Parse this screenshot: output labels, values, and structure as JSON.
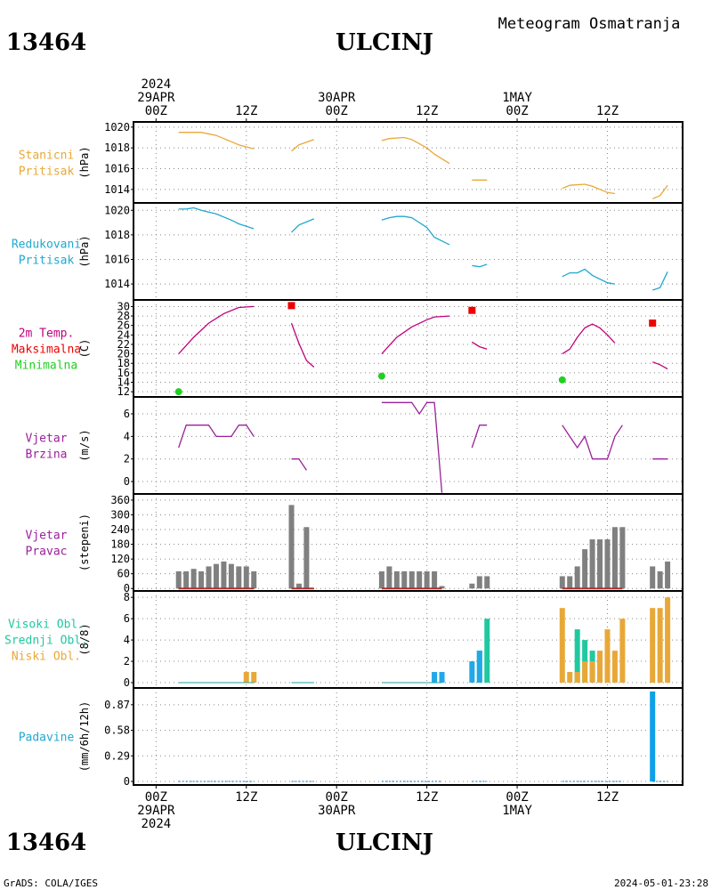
{
  "header": {
    "station_id": "13464",
    "station_name": "ULCINJ",
    "product": "Meteogram Osmatranja"
  },
  "footer": {
    "station_id": "13464",
    "station_name": "ULCINJ",
    "credit": "GrADS: COLA/IGES",
    "timestamp": "2024-05-01-23:28"
  },
  "time_axis": {
    "top_labels": [
      {
        "hour": 0,
        "lines": [
          "2024",
          "29APR",
          "00Z"
        ]
      },
      {
        "hour": 12,
        "lines": [
          "12Z"
        ]
      },
      {
        "hour": 24,
        "lines": [
          "30APR",
          "00Z"
        ]
      },
      {
        "hour": 36,
        "lines": [
          "12Z"
        ]
      },
      {
        "hour": 48,
        "lines": [
          "1MAY",
          "00Z"
        ]
      },
      {
        "hour": 60,
        "lines": [
          "12Z"
        ]
      }
    ],
    "bottom_labels": [
      {
        "hour": 0,
        "lines": [
          "00Z",
          "29APR",
          "2024"
        ]
      },
      {
        "hour": 12,
        "lines": [
          "12Z"
        ]
      },
      {
        "hour": 24,
        "lines": [
          "00Z",
          "30APR"
        ]
      },
      {
        "hour": 36,
        "lines": [
          "12Z"
        ]
      },
      {
        "hour": 48,
        "lines": [
          "00Z",
          "1MAY"
        ]
      },
      {
        "hour": 60,
        "lines": [
          "12Z"
        ]
      }
    ],
    "range_hours": [
      -3,
      70
    ]
  },
  "colors": {
    "orange": "#e8a838",
    "cyan": "#20a8d0",
    "magenta": "#c0007a",
    "red": "#ee0000",
    "green": "#20d020",
    "purple": "#9b209b",
    "gray": "#808080",
    "teal": "#20c8a0",
    "blue": "#10a0e8",
    "darkred": "#b03030"
  },
  "chart_data": [
    {
      "type": "line",
      "panel": "station_pressure",
      "labels": [
        "Stanicni",
        "Pritisak"
      ],
      "label_color": "#e8a838",
      "ylabel": "(hPa)",
      "yticks": [
        1014,
        1016,
        1018,
        1020
      ],
      "ylim": [
        1012.7,
        1020.5
      ],
      "series": [
        {
          "color": "#e8a838",
          "segments": [
            [
              [
                3,
                1019.5
              ],
              [
                6,
                1019.5
              ],
              [
                8,
                1019.2
              ],
              [
                10,
                1018.6
              ],
              [
                11,
                1018.3
              ],
              [
                13,
                1017.9
              ]
            ],
            [
              [
                18,
                1017.7
              ],
              [
                19,
                1018.3
              ],
              [
                21,
                1018.8
              ]
            ],
            [
              [
                30,
                1018.7
              ],
              [
                31,
                1018.9
              ],
              [
                33,
                1019.0
              ],
              [
                34,
                1018.8
              ],
              [
                36,
                1018.0
              ],
              [
                37,
                1017.4
              ],
              [
                39,
                1016.5
              ]
            ],
            [
              [
                42,
                1014.9
              ],
              [
                44,
                1014.9
              ]
            ],
            [
              [
                54,
                1014.1
              ],
              [
                55,
                1014.4
              ],
              [
                57,
                1014.5
              ],
              [
                58,
                1014.3
              ],
              [
                60,
                1013.7
              ],
              [
                61,
                1013.6
              ]
            ],
            [
              [
                66,
                1013.1
              ],
              [
                67,
                1013.4
              ],
              [
                68,
                1014.4
              ]
            ]
          ]
        }
      ]
    },
    {
      "type": "line",
      "panel": "reduced_pressure",
      "labels": [
        "Redukovani",
        "Pritisak"
      ],
      "label_color": "#20a8d0",
      "ylabel": "(hPa)",
      "yticks": [
        1014,
        1016,
        1018,
        1020
      ],
      "ylim": [
        1012.7,
        1020.6
      ],
      "series": [
        {
          "color": "#20a8d0",
          "segments": [
            [
              [
                3,
                1020.1
              ],
              [
                4,
                1020.1
              ],
              [
                5,
                1020.2
              ],
              [
                6,
                1020.0
              ],
              [
                8,
                1019.7
              ],
              [
                10,
                1019.2
              ],
              [
                11,
                1018.9
              ],
              [
                13,
                1018.5
              ]
            ],
            [
              [
                18,
                1018.2
              ],
              [
                19,
                1018.8
              ],
              [
                21,
                1019.3
              ]
            ],
            [
              [
                30,
                1019.2
              ],
              [
                31,
                1019.4
              ],
              [
                32,
                1019.5
              ],
              [
                33,
                1019.5
              ],
              [
                34,
                1019.4
              ],
              [
                36,
                1018.6
              ],
              [
                37,
                1017.8
              ],
              [
                39,
                1017.2
              ]
            ],
            [
              [
                42,
                1015.5
              ],
              [
                43,
                1015.4
              ],
              [
                44,
                1015.6
              ]
            ],
            [
              [
                54,
                1014.6
              ],
              [
                55,
                1014.9
              ],
              [
                56,
                1014.9
              ],
              [
                57,
                1015.2
              ],
              [
                58,
                1014.7
              ],
              [
                60,
                1014.1
              ],
              [
                61,
                1014.0
              ]
            ],
            [
              [
                66,
                1013.5
              ],
              [
                67,
                1013.7
              ],
              [
                68,
                1015.0
              ]
            ]
          ]
        }
      ]
    },
    {
      "type": "line",
      "panel": "temperature",
      "labels": [
        "2m Temp.",
        "Maksimalna",
        "Minimalna"
      ],
      "label_colors": [
        "#c0007a",
        "#ee0000",
        "#20d020"
      ],
      "ylabel": "(C)",
      "yticks": [
        12,
        14,
        16,
        18,
        20,
        22,
        24,
        26,
        28,
        30
      ],
      "ylim": [
        10.9,
        31.4
      ],
      "series": [
        {
          "color": "#c0007a",
          "segments": [
            [
              [
                3,
                20
              ],
              [
                5,
                23.5
              ],
              [
                7,
                26.5
              ],
              [
                9,
                28.5
              ],
              [
                11,
                29.8
              ],
              [
                13,
                30
              ]
            ],
            [
              [
                18,
                26.5
              ],
              [
                19,
                22.2
              ],
              [
                20,
                18.6
              ],
              [
                21,
                17.2
              ]
            ],
            [
              [
                30,
                20
              ],
              [
                32,
                23.5
              ],
              [
                34,
                25.7
              ],
              [
                36,
                27.2
              ],
              [
                37,
                27.8
              ],
              [
                39,
                28
              ]
            ],
            [
              [
                42,
                22.5
              ],
              [
                43,
                21.5
              ],
              [
                44,
                21
              ]
            ],
            [
              [
                54,
                20
              ],
              [
                55,
                21
              ],
              [
                56,
                23.5
              ],
              [
                57,
                25.5
              ],
              [
                58,
                26.3
              ],
              [
                59,
                25.5
              ],
              [
                60,
                24
              ],
              [
                61,
                22.3
              ]
            ],
            [
              [
                66,
                18.3
              ],
              [
                67,
                17.7
              ],
              [
                68,
                16.8
              ]
            ]
          ]
        }
      ],
      "maxima": [
        [
          18,
          30.2
        ],
        [
          42,
          29.2
        ],
        [
          66,
          26.5
        ]
      ],
      "minima": [
        [
          3,
          12
        ],
        [
          30,
          15.3
        ],
        [
          54,
          14.5
        ]
      ]
    },
    {
      "type": "line",
      "panel": "wind_speed",
      "labels": [
        "Vjetar",
        "Brzina"
      ],
      "label_color": "#9b209b",
      "ylabel": "(m/s)",
      "yticks": [
        0,
        2,
        4,
        6
      ],
      "ylim": [
        -1.1,
        7.5
      ],
      "series": [
        {
          "color": "#9b209b",
          "segments": [
            [
              [
                3,
                3
              ],
              [
                4,
                5
              ],
              [
                6,
                5
              ],
              [
                7,
                5
              ],
              [
                8,
                4
              ],
              [
                9,
                4
              ],
              [
                10,
                4
              ],
              [
                11,
                5
              ],
              [
                12,
                5
              ],
              [
                13,
                4
              ]
            ],
            [
              [
                18,
                2
              ],
              [
                19,
                2
              ],
              [
                20,
                1
              ]
            ],
            [
              [
                30,
                7
              ],
              [
                31,
                7
              ],
              [
                32,
                7
              ],
              [
                33,
                7
              ],
              [
                34,
                7
              ],
              [
                35,
                6
              ],
              [
                36,
                7
              ],
              [
                37,
                7
              ],
              [
                38,
                -1
              ]
            ],
            [
              [
                42,
                3
              ],
              [
                43,
                5
              ],
              [
                44,
                5
              ]
            ],
            [
              [
                54,
                5
              ],
              [
                55,
                4
              ],
              [
                56,
                3
              ],
              [
                57,
                4
              ],
              [
                58,
                2
              ],
              [
                59,
                2
              ],
              [
                60,
                2
              ],
              [
                61,
                4
              ],
              [
                62,
                5
              ]
            ],
            [
              [
                66,
                2
              ],
              [
                67,
                2
              ],
              [
                68,
                2
              ]
            ]
          ]
        }
      ]
    },
    {
      "type": "bar",
      "panel": "wind_direction",
      "labels": [
        "Vjetar",
        "Pravac"
      ],
      "label_color": "#9b209b",
      "ylabel": "(stepeni)",
      "yticks": [
        0,
        60,
        120,
        180,
        240,
        300,
        360
      ],
      "ylim": [
        -10,
        385
      ],
      "x": [
        3,
        4,
        5,
        6,
        7,
        8,
        9,
        10,
        11,
        12,
        13,
        18,
        19,
        20,
        30,
        31,
        32,
        33,
        34,
        35,
        36,
        37,
        38,
        42,
        43,
        44,
        54,
        55,
        56,
        57,
        58,
        59,
        60,
        61,
        62,
        66,
        67,
        68
      ],
      "values": [
        70,
        70,
        80,
        70,
        90,
        100,
        110,
        100,
        90,
        90,
        70,
        340,
        20,
        250,
        70,
        90,
        70,
        70,
        70,
        70,
        70,
        70,
        10,
        20,
        50,
        50,
        50,
        50,
        90,
        160,
        200,
        200,
        200,
        250,
        250,
        90,
        70,
        110
      ],
      "bar_color": "#808080",
      "base_color": "#b03030"
    },
    {
      "type": "bar",
      "panel": "clouds",
      "labels": [
        "Visoki Obl.",
        "Srednji Obl.",
        "Niski Obl."
      ],
      "label_colors": [
        "#20c8a0",
        "#20c8a0",
        "#e8a838"
      ],
      "ylabel": "(8/8)",
      "yticks": [
        0,
        2,
        4,
        6,
        8
      ],
      "ylim": [
        -0.5,
        8.6
      ],
      "series": [
        {
          "name": "Visoki Obl.",
          "color": "#20c8a0",
          "x": [
            43,
            44,
            56,
            57,
            58,
            59
          ],
          "values": [
            3,
            6,
            5,
            4,
            3,
            1
          ]
        },
        {
          "name": "Srednji Obl.",
          "color": "#20a8e8",
          "x": [
            37,
            38,
            42,
            43
          ],
          "values": [
            1,
            1,
            2,
            3
          ]
        },
        {
          "name": "Niski Obl.",
          "color": "#e8a838",
          "x": [
            12,
            13,
            54,
            55,
            56,
            57,
            58,
            59,
            60,
            61,
            62,
            66,
            67,
            68
          ],
          "values": [
            1,
            1,
            7,
            1,
            1,
            2,
            2,
            3,
            5,
            3,
            6,
            7,
            7,
            8
          ]
        }
      ]
    },
    {
      "type": "bar",
      "panel": "precipitation",
      "labels": [
        "Padavine"
      ],
      "label_color": "#20a8d0",
      "ylabel": "(mm/6h/12h)",
      "yticks": [
        0,
        0.29,
        0.58,
        0.87
      ],
      "ylim": [
        -0.04,
        1.06
      ],
      "x": [
        66
      ],
      "values": [
        1.02
      ],
      "bar_color": "#10a0e8"
    }
  ]
}
